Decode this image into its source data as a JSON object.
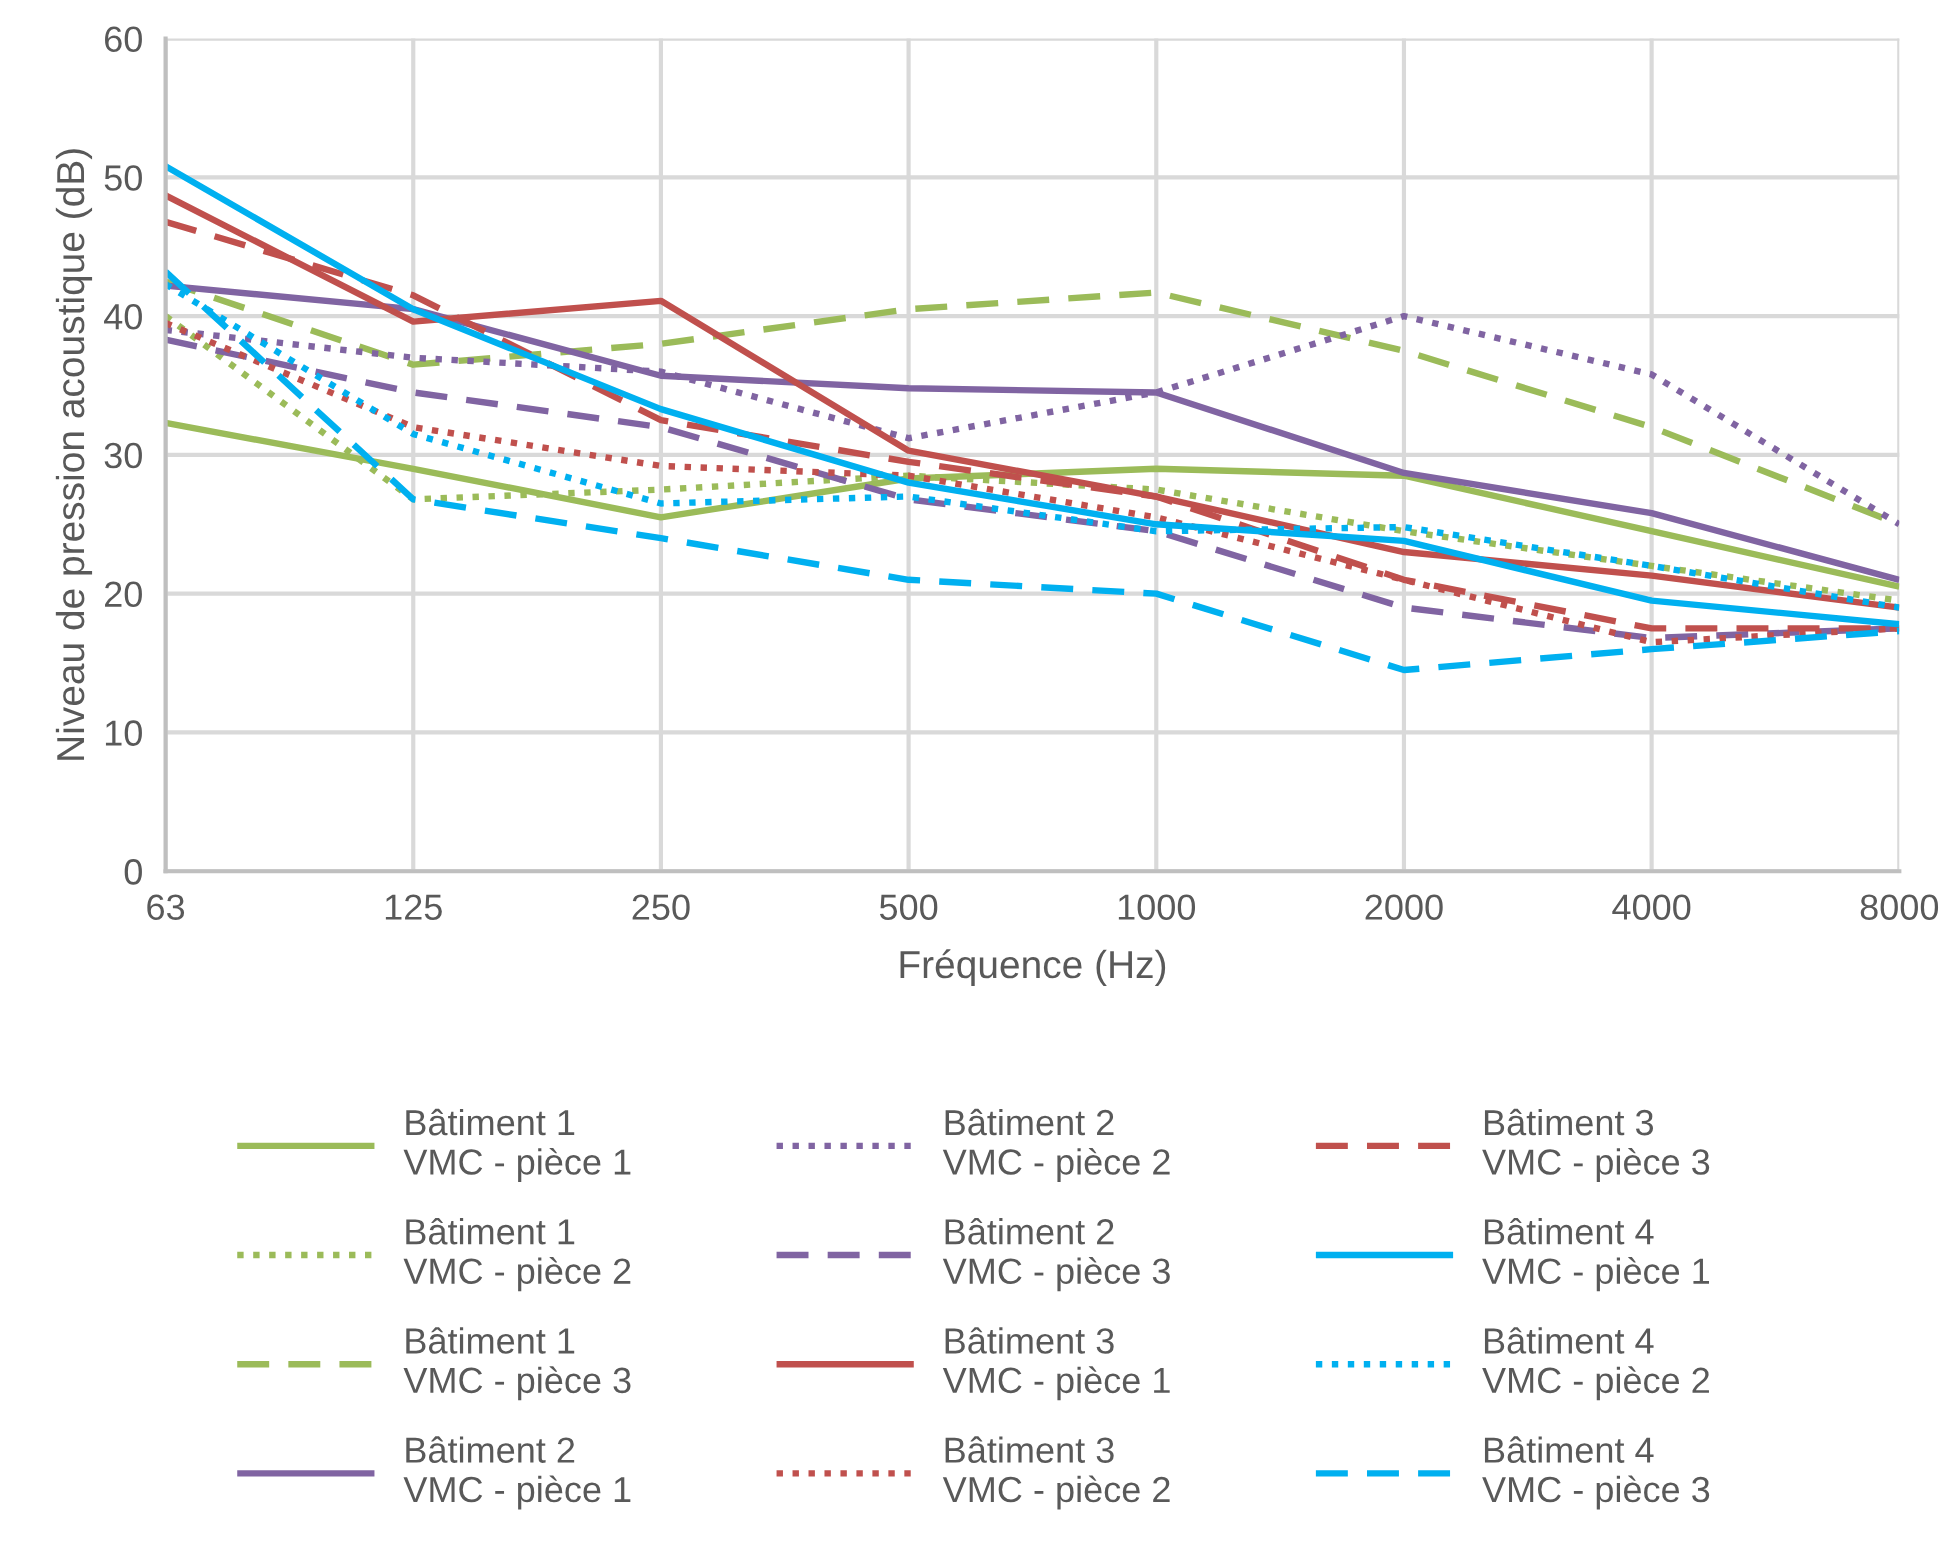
{
  "chart_data": {
    "type": "line",
    "xlabel": "Fréquence (Hz)",
    "ylabel": "Niveau de pression acoustique (dB)",
    "categories": [
      "63",
      "125",
      "250",
      "500",
      "1000",
      "2000",
      "4000",
      "8000"
    ],
    "ylim": [
      0,
      60
    ],
    "yticks": [
      0,
      10,
      20,
      30,
      40,
      50,
      60
    ],
    "grid": true,
    "legend": "bottom",
    "marker": "none",
    "series": [
      {
        "name": "Bâtiment 1\nVMC - pièce 1",
        "color": "#9bbb59",
        "line_style": "solid",
        "values": [
          32.3,
          29,
          25.5,
          28.3,
          29,
          28.5,
          24.5,
          20.5
        ]
      },
      {
        "name": "Bâtiment 1\nVMC - pièce 2",
        "color": "#9bbb59",
        "line_style": "dotted",
        "values": [
          40,
          26.8,
          27.5,
          28.5,
          27.5,
          24.5,
          22,
          19.5
        ]
      },
      {
        "name": "Bâtiment 1\nVMC - pièce 3",
        "color": "#9bbb59",
        "line_style": "dashed",
        "values": [
          42.5,
          36.5,
          38,
          40.5,
          41.7,
          37.5,
          32,
          25
        ]
      },
      {
        "name": "Bâtiment 2\nVMC - pièce 1",
        "color": "#8064a2",
        "line_style": "solid",
        "values": [
          42.2,
          40.5,
          35.7,
          34.8,
          34.5,
          28.7,
          25.8,
          21
        ]
      },
      {
        "name": "Bâtiment 2\nVMC - pièce 2",
        "color": "#8064a2",
        "line_style": "dotted",
        "values": [
          39,
          37,
          36,
          31.2,
          34.5,
          40,
          35.8,
          25
        ]
      },
      {
        "name": "Bâtiment 2\nVMC - pièce 3",
        "color": "#8064a2",
        "line_style": "dashed",
        "values": [
          38.3,
          34.5,
          32,
          26.8,
          24.5,
          19,
          16.8,
          17.5
        ]
      },
      {
        "name": "Bâtiment 3\nVMC - pièce 1",
        "color": "#c0504d",
        "line_style": "solid",
        "values": [
          48.7,
          39.6,
          41.1,
          30.3,
          27,
          23,
          21.3,
          19
        ]
      },
      {
        "name": "Bâtiment 3\nVMC - pièce 2",
        "color": "#c0504d",
        "line_style": "dotted",
        "values": [
          39.5,
          32,
          29.2,
          28.5,
          25.5,
          21,
          16.5,
          17.5
        ]
      },
      {
        "name": "Bâtiment 3\nVMC - pièce 3",
        "color": "#c0504d",
        "line_style": "dashed",
        "values": [
          46.8,
          41.5,
          32.5,
          29.5,
          27,
          21,
          17.5,
          17.5
        ]
      },
      {
        "name": "Bâtiment 4\nVMC - pièce 1",
        "color": "#00b0f0",
        "line_style": "solid",
        "values": [
          50.8,
          40.5,
          33.3,
          28,
          25,
          23.8,
          19.5,
          17.8
        ]
      },
      {
        "name": "Bâtiment 4\nVMC - pièce 2",
        "color": "#00b0f0",
        "line_style": "dotted",
        "values": [
          42.3,
          31.5,
          26.5,
          27,
          24.5,
          24.8,
          22,
          19
        ]
      },
      {
        "name": "Bâtiment 4\nVMC - pièce 3",
        "color": "#00b0f0",
        "line_style": "dashed",
        "values": [
          43.2,
          26.8,
          24,
          21,
          20,
          14.5,
          16,
          17.3
        ]
      }
    ]
  }
}
